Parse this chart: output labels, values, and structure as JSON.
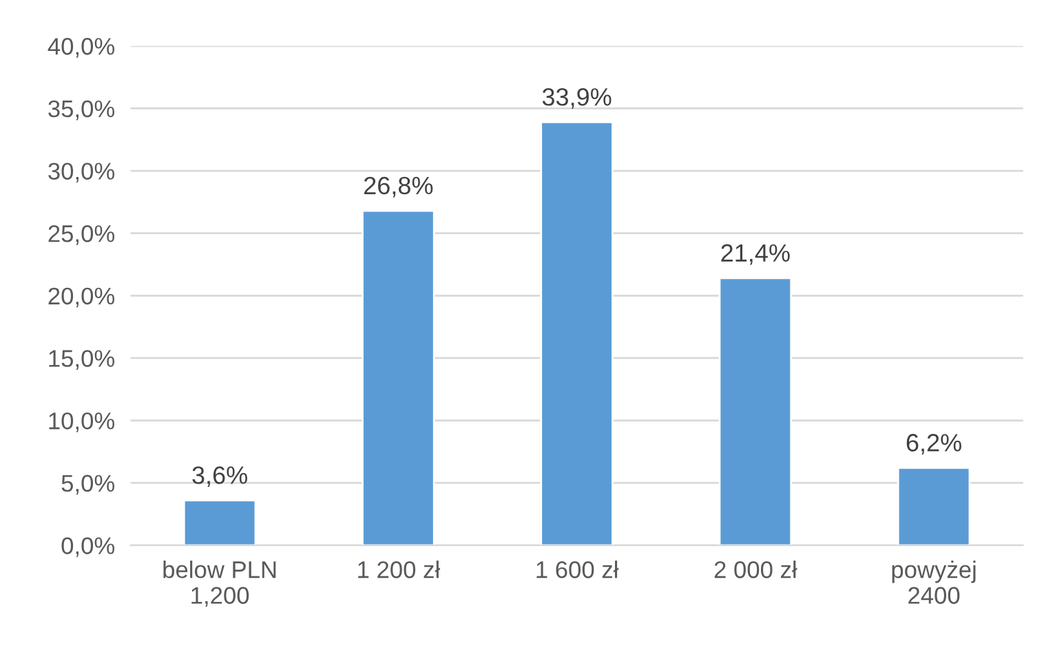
{
  "chart_data": {
    "type": "bar",
    "categories": [
      "below PLN\n1,200",
      "1 200 zł",
      "1 600 zł",
      "2 000 zł",
      "powyżej\n2400"
    ],
    "values": [
      3.6,
      26.8,
      33.9,
      21.4,
      6.2
    ],
    "value_labels": [
      "3,6%",
      "26,8%",
      "33,9%",
      "21,4%",
      "6,2%"
    ],
    "color": "#5b9bd5",
    "ylim": [
      0,
      40
    ],
    "yticks": [
      {
        "value": 0,
        "label": "0,0%"
      },
      {
        "value": 5,
        "label": "5,0%"
      },
      {
        "value": 10,
        "label": "10,0%"
      },
      {
        "value": 15,
        "label": "15,0%"
      },
      {
        "value": 20,
        "label": "20,0%"
      },
      {
        "value": 25,
        "label": "25,0%"
      },
      {
        "value": 30,
        "label": "30,0%"
      },
      {
        "value": 35,
        "label": "35,0%"
      },
      {
        "value": 40,
        "label": "40,0%"
      }
    ],
    "grid": "y"
  }
}
